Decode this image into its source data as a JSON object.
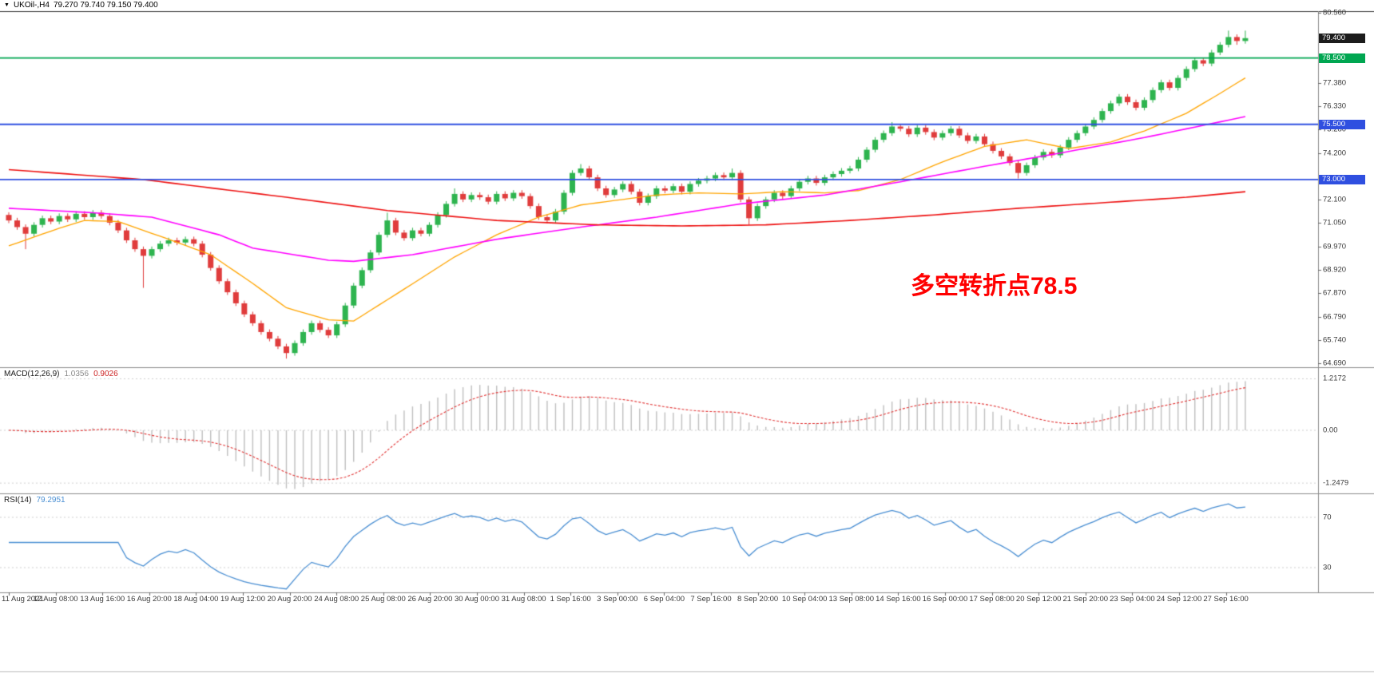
{
  "quote": {
    "symbol": "UKOil-,H4",
    "ohlc": "79.270 79.740 79.150 79.400"
  },
  "colors": {
    "background": "#ffffff",
    "bull": "#2eb44f",
    "bear": "#e03c3c",
    "hline_green": "#00a651",
    "hline_blue": "#2f4fe0",
    "price_tag_bg": "#1c1c1c",
    "macd_histogram": "#bfbfbf",
    "macd_signal": "#e23333",
    "rsi_line": "#4a8fd3",
    "grid_dotted": "#cfcfcf",
    "separator": "#8c8c8c",
    "frame": "#333333",
    "axis_text": "#3a3a3a",
    "annotation_red": "#ff0000"
  },
  "chart_data": {
    "type": "candlestick",
    "title": "UKOil-,H4",
    "timeframe": "H4",
    "current_bar": {
      "open": 79.27,
      "high": 79.74,
      "low": 79.15,
      "close": 79.4
    },
    "annotation": {
      "text": "多空转折点78.5",
      "color": "#ff0000"
    },
    "x_labels": [
      "11 Aug 2021",
      "12 Aug 08:00",
      "13 Aug 16:00",
      "16 Aug 20:00",
      "18 Aug 04:00",
      "19 Aug 12:00",
      "20 Aug 20:00",
      "24 Aug 08:00",
      "25 Aug 08:00",
      "26 Aug 20:00",
      "30 Aug 00:00",
      "31 Aug 08:00",
      "1 Sep 16:00",
      "3 Sep 00:00",
      "6 Sep 04:00",
      "7 Sep 16:00",
      "8 Sep 20:00",
      "10 Sep 04:00",
      "13 Sep 08:00",
      "14 Sep 16:00",
      "16 Sep 00:00",
      "17 Sep 08:00",
      "20 Sep 12:00",
      "21 Sep 20:00",
      "23 Sep 04:00",
      "24 Sep 12:00",
      "27 Sep 16:00"
    ],
    "y_axis": {
      "ticks": [
        "80.560",
        "77.380",
        "76.330",
        "75.280",
        "74.200",
        "72.100",
        "71.050",
        "69.970",
        "68.920",
        "67.870",
        "66.790",
        "65.740",
        "64.690"
      ],
      "range": [
        64.58,
        80.62
      ]
    },
    "price_tag": {
      "price": 79.4,
      "label": "79.400"
    },
    "hlines": [
      {
        "price": 78.5,
        "label": "78.500",
        "color": "#00a651"
      },
      {
        "price": 75.5,
        "label": "75.500",
        "color": "#2f4fe0"
      },
      {
        "price": 73.0,
        "label": "73.000",
        "color": "#2f4fe0"
      }
    ],
    "moving_averages": [
      {
        "name": "ma-fast-orange",
        "color": "#ffa500",
        "anchors": [
          [
            0,
            70.0
          ],
          [
            6,
            70.8
          ],
          [
            9,
            71.15
          ],
          [
            13,
            71.1
          ],
          [
            19,
            70.3
          ],
          [
            24,
            69.6
          ],
          [
            29,
            68.3
          ],
          [
            33,
            67.2
          ],
          [
            38,
            66.65
          ],
          [
            41,
            66.6
          ],
          [
            46,
            67.8
          ],
          [
            53,
            69.5
          ],
          [
            58,
            70.5
          ],
          [
            63,
            71.3
          ],
          [
            68,
            71.85
          ],
          [
            72,
            72.05
          ],
          [
            77,
            72.3
          ],
          [
            82,
            72.4
          ],
          [
            87,
            72.35
          ],
          [
            92,
            72.45
          ],
          [
            97,
            72.4
          ],
          [
            101,
            72.5
          ],
          [
            106,
            73.0
          ],
          [
            111,
            73.8
          ],
          [
            116,
            74.5
          ],
          [
            121,
            74.8
          ],
          [
            126,
            74.4
          ],
          [
            131,
            74.7
          ],
          [
            135,
            75.2
          ],
          [
            140,
            76.0
          ],
          [
            144,
            76.9
          ],
          [
            147,
            77.6
          ]
        ]
      },
      {
        "name": "ma-mid-magenta",
        "color": "#ff00ff",
        "anchors": [
          [
            0,
            71.7
          ],
          [
            10,
            71.5
          ],
          [
            17,
            71.3
          ],
          [
            25,
            70.5
          ],
          [
            29,
            69.9
          ],
          [
            38,
            69.35
          ],
          [
            41,
            69.3
          ],
          [
            48,
            69.6
          ],
          [
            58,
            70.3
          ],
          [
            68,
            70.85
          ],
          [
            77,
            71.3
          ],
          [
            87,
            71.9
          ],
          [
            97,
            72.3
          ],
          [
            106,
            72.9
          ],
          [
            116,
            73.6
          ],
          [
            125,
            74.2
          ],
          [
            135,
            74.9
          ],
          [
            147,
            75.85
          ]
        ]
      },
      {
        "name": "ma-slow-red",
        "color": "#ee1111",
        "anchors": [
          [
            0,
            73.45
          ],
          [
            16,
            73.0
          ],
          [
            33,
            72.2
          ],
          [
            45,
            71.6
          ],
          [
            58,
            71.15
          ],
          [
            70,
            70.95
          ],
          [
            80,
            70.9
          ],
          [
            90,
            70.95
          ],
          [
            100,
            71.15
          ],
          [
            110,
            71.4
          ],
          [
            120,
            71.7
          ],
          [
            130,
            71.95
          ],
          [
            140,
            72.2
          ],
          [
            147,
            72.45
          ]
        ]
      }
    ],
    "candles": [
      [
        71.4,
        71.52,
        71.03,
        71.15
      ],
      [
        71.15,
        71.27,
        70.73,
        70.85
      ],
      [
        70.85,
        70.97,
        69.85,
        70.55
      ],
      [
        70.55,
        71.07,
        70.43,
        70.95
      ],
      [
        70.95,
        71.37,
        70.83,
        71.25
      ],
      [
        71.25,
        71.37,
        70.98,
        71.1
      ],
      [
        71.1,
        71.47,
        70.98,
        71.35
      ],
      [
        71.35,
        71.47,
        71.08,
        71.2
      ],
      [
        71.2,
        71.57,
        71.08,
        71.45
      ],
      [
        71.45,
        71.57,
        71.18,
        71.3
      ],
      [
        71.3,
        71.62,
        71.18,
        71.5
      ],
      [
        71.5,
        71.62,
        71.23,
        71.35
      ],
      [
        71.35,
        71.47,
        70.93,
        71.05
      ],
      [
        71.05,
        71.17,
        70.58,
        70.7
      ],
      [
        70.7,
        70.82,
        70.13,
        70.25
      ],
      [
        70.25,
        70.37,
        69.73,
        69.85
      ],
      [
        69.85,
        69.97,
        68.1,
        69.55
      ],
      [
        69.55,
        69.97,
        69.43,
        69.85
      ],
      [
        69.85,
        70.22,
        69.73,
        70.1
      ],
      [
        70.1,
        70.37,
        69.98,
        70.25
      ],
      [
        70.25,
        70.37,
        70.03,
        70.15
      ],
      [
        70.15,
        70.42,
        70.03,
        70.3
      ],
      [
        70.3,
        70.42,
        69.98,
        70.1
      ],
      [
        70.1,
        70.22,
        69.48,
        69.6
      ],
      [
        69.6,
        69.72,
        68.88,
        69.0
      ],
      [
        69.0,
        69.12,
        68.28,
        68.4
      ],
      [
        68.4,
        68.52,
        67.78,
        67.9
      ],
      [
        67.9,
        68.02,
        67.28,
        67.4
      ],
      [
        67.4,
        67.52,
        66.78,
        66.9
      ],
      [
        66.9,
        67.02,
        66.38,
        66.5
      ],
      [
        66.5,
        66.62,
        65.98,
        66.1
      ],
      [
        66.1,
        66.22,
        65.68,
        65.8
      ],
      [
        65.8,
        65.92,
        65.33,
        65.45
      ],
      [
        65.45,
        65.57,
        64.9,
        65.15
      ],
      [
        65.15,
        65.72,
        65.03,
        65.6
      ],
      [
        65.6,
        66.22,
        65.48,
        66.1
      ],
      [
        66.1,
        66.62,
        65.98,
        66.5
      ],
      [
        66.5,
        66.62,
        66.08,
        66.2
      ],
      [
        66.2,
        66.32,
        65.83,
        65.95
      ],
      [
        65.95,
        66.57,
        65.83,
        66.45
      ],
      [
        66.45,
        67.42,
        66.33,
        67.3
      ],
      [
        67.3,
        68.32,
        67.18,
        68.2
      ],
      [
        68.2,
        69.02,
        68.08,
        68.9
      ],
      [
        68.9,
        69.82,
        68.78,
        69.7
      ],
      [
        69.7,
        70.62,
        69.58,
        70.5
      ],
      [
        70.5,
        71.5,
        70.38,
        71.15
      ],
      [
        71.15,
        71.27,
        70.48,
        70.6
      ],
      [
        70.6,
        70.72,
        70.23,
        70.35
      ],
      [
        70.35,
        70.82,
        70.23,
        70.7
      ],
      [
        70.7,
        70.82,
        70.43,
        70.55
      ],
      [
        70.55,
        71.07,
        70.43,
        70.95
      ],
      [
        70.95,
        71.52,
        70.83,
        71.4
      ],
      [
        71.4,
        72.02,
        71.28,
        71.9
      ],
      [
        71.9,
        72.6,
        71.78,
        72.35
      ],
      [
        72.35,
        72.47,
        71.98,
        72.1
      ],
      [
        72.1,
        72.42,
        71.98,
        72.3
      ],
      [
        72.3,
        72.42,
        72.08,
        72.2
      ],
      [
        72.2,
        72.32,
        71.88,
        72.0
      ],
      [
        72.0,
        72.47,
        71.88,
        72.35
      ],
      [
        72.35,
        72.47,
        72.03,
        72.15
      ],
      [
        72.15,
        72.52,
        72.03,
        72.4
      ],
      [
        72.4,
        72.52,
        72.13,
        72.25
      ],
      [
        72.25,
        72.37,
        71.68,
        71.8
      ],
      [
        71.8,
        71.92,
        71.18,
        71.3
      ],
      [
        71.3,
        71.42,
        71.03,
        71.15
      ],
      [
        71.15,
        71.67,
        71.03,
        71.55
      ],
      [
        71.55,
        72.52,
        71.43,
        72.4
      ],
      [
        72.4,
        73.42,
        72.28,
        73.3
      ],
      [
        73.3,
        73.7,
        73.18,
        73.5
      ],
      [
        73.5,
        73.62,
        72.98,
        73.1
      ],
      [
        73.1,
        73.22,
        72.48,
        72.6
      ],
      [
        72.6,
        72.72,
        72.18,
        72.3
      ],
      [
        72.3,
        72.67,
        72.18,
        72.55
      ],
      [
        72.55,
        72.92,
        72.43,
        72.8
      ],
      [
        72.8,
        72.92,
        72.33,
        72.45
      ],
      [
        72.45,
        72.57,
        71.83,
        71.95
      ],
      [
        71.95,
        72.37,
        71.83,
        72.25
      ],
      [
        72.25,
        72.72,
        72.13,
        72.6
      ],
      [
        72.6,
        72.72,
        72.38,
        72.5
      ],
      [
        72.5,
        72.82,
        72.38,
        72.7
      ],
      [
        72.7,
        72.82,
        72.33,
        72.45
      ],
      [
        72.45,
        72.92,
        72.33,
        72.8
      ],
      [
        72.8,
        73.07,
        72.68,
        72.95
      ],
      [
        72.95,
        73.17,
        72.83,
        73.05
      ],
      [
        73.05,
        73.32,
        72.93,
        73.2
      ],
      [
        73.2,
        73.32,
        72.98,
        73.1
      ],
      [
        73.1,
        73.5,
        72.98,
        73.3
      ],
      [
        73.3,
        73.42,
        71.98,
        72.1
      ],
      [
        72.1,
        72.22,
        70.95,
        71.25
      ],
      [
        71.25,
        71.92,
        71.13,
        71.8
      ],
      [
        71.8,
        72.22,
        71.68,
        72.1
      ],
      [
        72.1,
        72.52,
        71.98,
        72.4
      ],
      [
        72.4,
        72.52,
        72.13,
        72.25
      ],
      [
        72.25,
        72.72,
        72.13,
        72.6
      ],
      [
        72.6,
        73.02,
        72.48,
        72.9
      ],
      [
        72.9,
        73.17,
        72.78,
        73.05
      ],
      [
        73.05,
        73.17,
        72.73,
        72.85
      ],
      [
        72.85,
        73.22,
        72.73,
        73.1
      ],
      [
        73.1,
        73.37,
        72.98,
        73.25
      ],
      [
        73.25,
        73.52,
        73.13,
        73.4
      ],
      [
        73.4,
        73.62,
        73.28,
        73.5
      ],
      [
        73.5,
        74.02,
        73.38,
        73.9
      ],
      [
        73.9,
        74.47,
        73.78,
        74.35
      ],
      [
        74.35,
        74.92,
        74.23,
        74.8
      ],
      [
        74.8,
        75.22,
        74.68,
        75.1
      ],
      [
        75.1,
        75.6,
        74.98,
        75.4
      ],
      [
        75.4,
        75.52,
        75.18,
        75.3
      ],
      [
        75.3,
        75.42,
        74.93,
        75.05
      ],
      [
        75.05,
        75.47,
        74.93,
        75.35
      ],
      [
        75.35,
        75.47,
        75.03,
        75.15
      ],
      [
        75.15,
        75.27,
        74.78,
        74.9
      ],
      [
        74.9,
        75.22,
        74.78,
        75.1
      ],
      [
        75.1,
        75.42,
        74.98,
        75.3
      ],
      [
        75.3,
        75.42,
        74.88,
        75.0
      ],
      [
        75.0,
        75.12,
        74.63,
        74.75
      ],
      [
        74.75,
        75.07,
        74.63,
        74.95
      ],
      [
        74.95,
        75.07,
        74.48,
        74.6
      ],
      [
        74.6,
        74.72,
        74.18,
        74.3
      ],
      [
        74.3,
        74.42,
        73.93,
        74.05
      ],
      [
        74.05,
        74.17,
        73.63,
        73.75
      ],
      [
        73.75,
        73.87,
        73.05,
        73.3
      ],
      [
        73.3,
        73.77,
        73.18,
        73.65
      ],
      [
        73.65,
        74.12,
        73.53,
        74.0
      ],
      [
        74.0,
        74.37,
        73.88,
        74.25
      ],
      [
        74.25,
        74.37,
        73.98,
        74.1
      ],
      [
        74.1,
        74.57,
        73.98,
        74.45
      ],
      [
        74.45,
        74.92,
        74.33,
        74.8
      ],
      [
        74.8,
        75.22,
        74.68,
        75.1
      ],
      [
        75.1,
        75.52,
        74.98,
        75.4
      ],
      [
        75.4,
        75.82,
        75.28,
        75.7
      ],
      [
        75.7,
        76.22,
        75.58,
        76.1
      ],
      [
        76.1,
        76.57,
        75.98,
        76.45
      ],
      [
        76.45,
        76.87,
        76.33,
        76.75
      ],
      [
        76.75,
        76.87,
        76.38,
        76.5
      ],
      [
        76.5,
        76.62,
        76.13,
        76.25
      ],
      [
        76.25,
        76.72,
        76.13,
        76.6
      ],
      [
        76.6,
        77.17,
        76.48,
        77.05
      ],
      [
        77.05,
        77.52,
        76.93,
        77.4
      ],
      [
        77.4,
        77.52,
        77.03,
        77.15
      ],
      [
        77.15,
        77.72,
        77.03,
        77.6
      ],
      [
        77.6,
        78.12,
        77.48,
        78.0
      ],
      [
        78.0,
        78.52,
        77.88,
        78.4
      ],
      [
        78.4,
        78.52,
        78.13,
        78.25
      ],
      [
        78.25,
        78.87,
        78.13,
        78.75
      ],
      [
        78.75,
        79.22,
        78.63,
        79.1
      ],
      [
        79.1,
        79.74,
        78.98,
        79.45
      ],
      [
        79.45,
        79.57,
        79.1,
        79.27
      ],
      [
        79.27,
        79.74,
        79.15,
        79.4
      ]
    ],
    "indicators": {
      "macd": {
        "label": "MACD(12,26,9)",
        "value_main": "1.0356",
        "value_signal": "0.9026",
        "params": [
          12,
          26,
          9
        ],
        "axis_labels": [
          "1.2172",
          "0.00",
          "-1.2479"
        ],
        "axis_values": [
          1.2172,
          0,
          -1.2479
        ]
      },
      "rsi": {
        "label": "RSI(14)",
        "value": "79.2951",
        "period": 14,
        "levels": [
          70,
          30
        ],
        "axis_labels": [
          "70",
          "30"
        ]
      }
    }
  }
}
